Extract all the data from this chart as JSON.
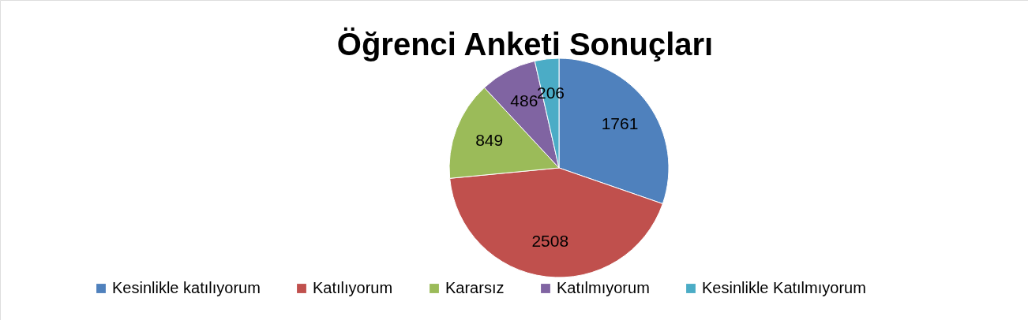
{
  "chart_data": {
    "type": "pie",
    "title": "Öğrenci Anketi Sonuçları",
    "categories": [
      "Kesinlikle katılıyorum",
      "Katılıyorum",
      "Kararsız",
      "Katılmıyorum",
      "Kesinlikle Katılmıyorum"
    ],
    "values": [
      1761,
      2508,
      849,
      486,
      206
    ],
    "colors": [
      "#4f81bd",
      "#c0504d",
      "#9bbb59",
      "#8064a2",
      "#4bacc6"
    ],
    "data_labels": true,
    "legend": "bottom"
  }
}
